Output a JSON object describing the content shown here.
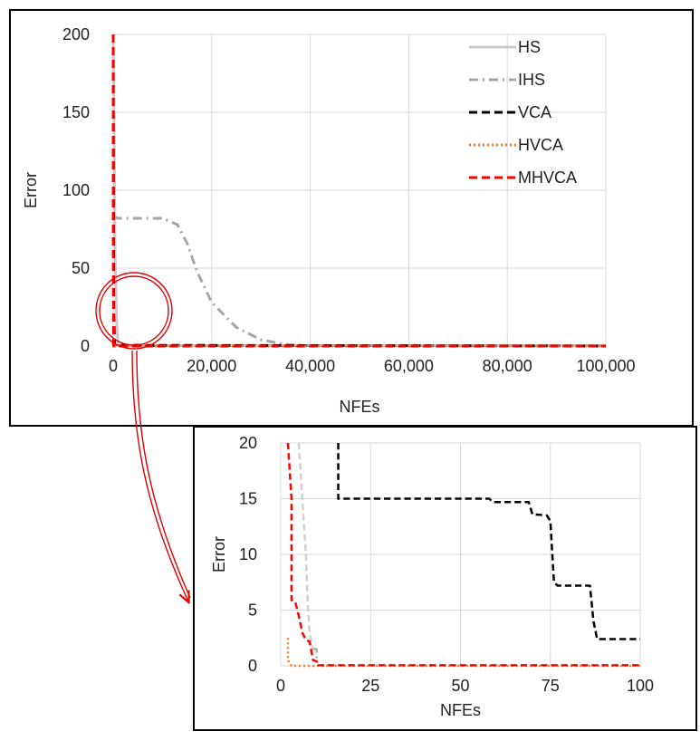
{
  "chart_data": [
    {
      "type": "line",
      "title": "",
      "xlabel": "NFEs",
      "ylabel": "Error",
      "xlim": [
        0,
        100000
      ],
      "ylim": [
        0,
        200
      ],
      "x_ticks": [
        "0",
        "20,000",
        "40,000",
        "60,000",
        "80,000",
        "100,000"
      ],
      "y_ticks": [
        "0",
        "50",
        "100",
        "150",
        "200"
      ],
      "grid": true,
      "legend_position": "top-right",
      "series": [
        {
          "name": "HS",
          "color": "#c9c9c9",
          "dash": "solid",
          "x": [
            0,
            400,
            700,
            1000,
            100000
          ],
          "y": [
            200,
            60,
            15,
            0.3,
            0.3
          ]
        },
        {
          "name": "IHS",
          "color": "#a6a6a6",
          "dash": "dashdot",
          "x": [
            0,
            1000,
            5000,
            10000,
            13000,
            15000,
            17000,
            20000,
            25000,
            30000,
            35000,
            40000,
            100000
          ],
          "y": [
            83,
            82,
            82,
            82,
            78,
            66,
            48,
            28,
            12,
            4,
            1,
            0.3,
            0.3
          ]
        },
        {
          "name": "VCA",
          "color": "#000000",
          "dash": "dash",
          "x": [
            0,
            100,
            300,
            100000
          ],
          "y": [
            200,
            20,
            0.5,
            0
          ]
        },
        {
          "name": "HVCA",
          "color": "#ed7d31",
          "dash": "dot",
          "x": [
            0,
            50,
            100000
          ],
          "y": [
            2.5,
            0,
            0
          ]
        },
        {
          "name": "MHVCA",
          "color": "#ff0000",
          "dash": "dash",
          "x": [
            0,
            20,
            100,
            100000
          ],
          "y": [
            200,
            60,
            0,
            0
          ]
        }
      ]
    },
    {
      "type": "line",
      "title": "",
      "xlabel": "NFEs",
      "ylabel": "Error",
      "xlim": [
        0,
        100
      ],
      "ylim": [
        0,
        20
      ],
      "x_ticks": [
        "0",
        "25",
        "50",
        "75",
        "100"
      ],
      "y_ticks": [
        "0",
        "5",
        "10",
        "15",
        "20"
      ],
      "grid": true,
      "series": [
        {
          "name": "HS",
          "color": "#d0d0d0",
          "dash": "dash",
          "x": [
            5,
            6,
            7,
            7.6,
            8,
            9,
            10
          ],
          "y": [
            20,
            15,
            10,
            5,
            3,
            1.5,
            1.5
          ]
        },
        {
          "name": "IHS",
          "color": "#b0b0b0",
          "dash": "dashdot",
          "x": [
            9,
            10,
            10
          ],
          "y": [
            1.5,
            1.5,
            0.3
          ]
        },
        {
          "name": "VCA",
          "color": "#000000",
          "dash": "dash",
          "x": [
            16,
            16,
            58,
            59,
            69,
            70,
            74,
            75,
            76,
            77,
            86,
            87,
            88,
            100
          ],
          "y": [
            20,
            15,
            15,
            14.7,
            14.7,
            13.6,
            13.5,
            13,
            7.5,
            7.2,
            7.2,
            4,
            2.4,
            2.4
          ]
        },
        {
          "name": "HVCA",
          "color": "#ed7d31",
          "dash": "dot",
          "x": [
            2,
            2,
            3,
            100
          ],
          "y": [
            2.5,
            0.5,
            0,
            0
          ]
        },
        {
          "name": "MHVCA",
          "color": "#ff0000",
          "dash": "dash",
          "x": [
            2,
            3,
            3,
            4,
            5,
            6,
            7,
            8,
            9,
            10,
            10,
            100
          ],
          "y": [
            20,
            15,
            5.9,
            5.8,
            4.5,
            3,
            2.3,
            2.2,
            0.5,
            0.4,
            0.05,
            0.05
          ]
        }
      ]
    }
  ]
}
